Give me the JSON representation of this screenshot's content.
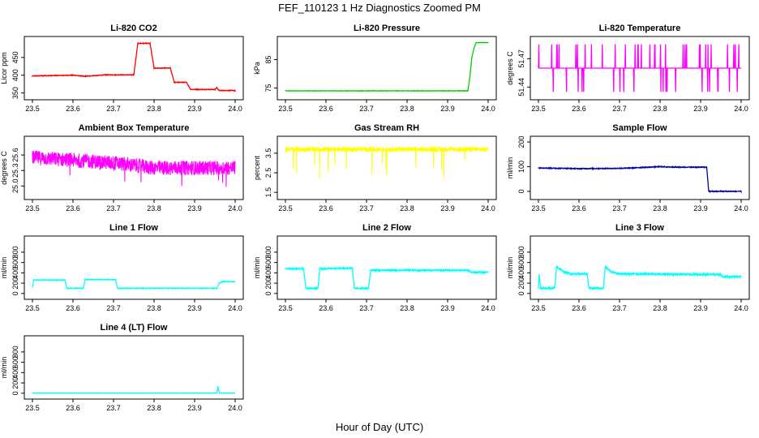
{
  "figure": {
    "title": "FEF_110123  1 Hz Diagnostics Zoomed PM",
    "xlabel": "Hour of Day (UTC)"
  },
  "chart_data": [
    {
      "type": "line",
      "title": "Li-820 CO2",
      "ylabel": "Licor ppm",
      "xlim": [
        23.5,
        24.0
      ],
      "ylim": [
        340,
        500
      ],
      "x_ticks": [
        "23.5",
        "23.6",
        "23.7",
        "23.8",
        "23.9",
        "24.0"
      ],
      "y_ticks": [
        {
          "v": 350,
          "label": "350"
        },
        {
          "v": 400,
          "label": "400"
        },
        {
          "v": 450,
          "label": "450"
        }
      ],
      "color": "#ff0000",
      "style": "step",
      "noise": 0.8,
      "series": [
        {
          "x": [
            23.5,
            23.6,
            23.63,
            23.68,
            23.75,
            23.76,
            23.79,
            23.8,
            23.84,
            23.85,
            23.88,
            23.89,
            23.95,
            23.955,
            23.96,
            24.0
          ],
          "y": [
            398,
            400,
            397,
            401,
            401,
            490,
            490,
            420,
            420,
            380,
            380,
            360,
            360,
            365,
            357,
            357
          ]
        }
      ]
    },
    {
      "type": "line",
      "title": "Li-820 Pressure",
      "ylabel": "kPa",
      "xlim": [
        23.5,
        24.0
      ],
      "ylim": [
        72,
        92
      ],
      "x_ticks": [
        "23.5",
        "23.6",
        "23.7",
        "23.8",
        "23.9",
        "24.0"
      ],
      "y_ticks": [
        {
          "v": 75,
          "label": "75"
        },
        {
          "v": 85,
          "label": "85"
        }
      ],
      "color": "#00cc00",
      "style": "line",
      "noise": 0.05,
      "series": [
        {
          "x": [
            23.5,
            23.93,
            23.95,
            23.955,
            23.96,
            23.965,
            23.97,
            24.0
          ],
          "y": [
            74,
            74,
            74,
            79,
            86,
            89,
            91,
            91
          ]
        }
      ]
    },
    {
      "type": "line",
      "title": "Li-820 Temperature",
      "ylabel": "degrees C",
      "xlim": [
        23.5,
        24.0
      ],
      "ylim": [
        51.43,
        51.49
      ],
      "x_ticks": [
        "23.5",
        "23.6",
        "23.7",
        "23.8",
        "23.9",
        "24.0"
      ],
      "y_ticks": [
        {
          "v": 51.44,
          "label": "51.44"
        },
        {
          "v": 51.47,
          "label": "51.47"
        }
      ],
      "color": "#ff00ff",
      "style": "flicker",
      "levels": [
        51.435,
        51.46,
        51.485
      ],
      "base": 51.46,
      "series": [
        {
          "x": [
            23.5,
            24.0
          ],
          "y": [
            51.46,
            51.46
          ]
        }
      ]
    },
    {
      "type": "line",
      "title": "Ambient Box Temperature",
      "ylabel": "degrees C",
      "xlim": [
        23.5,
        24.0
      ],
      "ylim": [
        24.8,
        25.9
      ],
      "x_ticks": [
        "23.5",
        "23.6",
        "23.7",
        "23.8",
        "23.9",
        "24.0"
      ],
      "y_ticks": [
        {
          "v": 25.0,
          "label": "25.0"
        },
        {
          "v": 25.3,
          "label": "25.3"
        },
        {
          "v": 25.6,
          "label": "25.6"
        }
      ],
      "color": "#ff00ff",
      "style": "band",
      "noise": 0.14,
      "spike_down": 0.35,
      "series": [
        {
          "x": [
            23.5,
            23.7,
            23.8,
            24.0
          ],
          "y": [
            25.55,
            25.45,
            25.35,
            25.35
          ]
        }
      ]
    },
    {
      "type": "line",
      "title": "Gas Stream RH",
      "ylabel": "percent",
      "xlim": [
        23.5,
        24.0
      ],
      "ylim": [
        1.3,
        4.2
      ],
      "x_ticks": [
        "23.5",
        "23.6",
        "23.7",
        "23.8",
        "23.9",
        "24.0"
      ],
      "y_ticks": [
        {
          "v": 1.5,
          "label": "1.5"
        },
        {
          "v": 2.5,
          "label": "2.5"
        },
        {
          "v": 3.5,
          "label": "3.5"
        }
      ],
      "color": "#ffff00",
      "style": "band",
      "noise": 0.13,
      "spike_down": 1.5,
      "series": [
        {
          "x": [
            23.5,
            24.0
          ],
          "y": [
            3.7,
            3.7
          ]
        }
      ]
    },
    {
      "type": "line",
      "title": "Sample Flow",
      "ylabel": "ml/min",
      "xlim": [
        23.5,
        24.0
      ],
      "ylim": [
        -20,
        210
      ],
      "x_ticks": [
        "23.5",
        "23.6",
        "23.7",
        "23.8",
        "23.9",
        "24.0"
      ],
      "y_ticks": [
        {
          "v": 0,
          "label": "0"
        },
        {
          "v": 100,
          "label": "100"
        },
        {
          "v": 200,
          "label": "200"
        }
      ],
      "color": "#0000aa",
      "style": "line",
      "noise": 1.5,
      "series": [
        {
          "x": [
            23.5,
            23.6,
            23.7,
            23.8,
            23.83,
            23.915,
            23.92,
            24.0
          ],
          "y": [
            95,
            92,
            93,
            100,
            98,
            98,
            0,
            0
          ]
        }
      ]
    },
    {
      "type": "line",
      "title": "Line 1 Flow",
      "ylabel": "ml/min",
      "xlim": [
        23.5,
        24.0
      ],
      "ylim": [
        -50,
        1050
      ],
      "x_ticks": [
        "23.5",
        "23.6",
        "23.7",
        "23.8",
        "23.9",
        "24.0"
      ],
      "y_ticks": [
        {
          "v": 0,
          "label": "0"
        },
        {
          "v": 200,
          "label": "200"
        },
        {
          "v": 400,
          "label": "400"
        },
        {
          "v": 600,
          "label": "600"
        },
        {
          "v": 800,
          "label": "800"
        }
      ],
      "color": "#00ffff",
      "style": "step",
      "noise": 6,
      "series": [
        {
          "x": [
            23.5,
            23.503,
            23.58,
            23.585,
            23.625,
            23.63,
            23.705,
            23.71,
            23.955,
            23.96,
            23.97,
            24.0
          ],
          "y": [
            120,
            260,
            260,
            100,
            100,
            270,
            270,
            100,
            100,
            200,
            230,
            230
          ]
        }
      ]
    },
    {
      "type": "line",
      "title": "Line 2 Flow",
      "ylabel": "ml/min",
      "xlim": [
        23.5,
        24.0
      ],
      "ylim": [
        -50,
        1050
      ],
      "x_ticks": [
        "23.5",
        "23.6",
        "23.7",
        "23.8",
        "23.9",
        "24.0"
      ],
      "y_ticks": [
        {
          "v": 0,
          "label": "0"
        },
        {
          "v": 200,
          "label": "200"
        },
        {
          "v": 400,
          "label": "400"
        },
        {
          "v": 600,
          "label": "600"
        },
        {
          "v": 800,
          "label": "800"
        }
      ],
      "color": "#00ffff",
      "style": "step",
      "noise": 12,
      "series": [
        {
          "x": [
            23.5,
            23.545,
            23.55,
            23.58,
            23.585,
            23.665,
            23.67,
            23.705,
            23.71,
            23.95,
            23.96,
            24.0
          ],
          "y": [
            480,
            480,
            100,
            100,
            480,
            490,
            100,
            100,
            450,
            450,
            410,
            410
          ]
        }
      ]
    },
    {
      "type": "line",
      "title": "Line 3 Flow",
      "ylabel": "ml/min",
      "xlim": [
        23.5,
        24.0
      ],
      "ylim": [
        -50,
        1050
      ],
      "x_ticks": [
        "23.5",
        "23.6",
        "23.7",
        "23.8",
        "23.9",
        "24.0"
      ],
      "y_ticks": [
        {
          "v": 0,
          "label": "0"
        },
        {
          "v": 200,
          "label": "200"
        },
        {
          "v": 400,
          "label": "400"
        },
        {
          "v": 600,
          "label": "600"
        },
        {
          "v": 800,
          "label": "800"
        }
      ],
      "color": "#00ffff",
      "style": "step",
      "noise": 18,
      "series": [
        {
          "x": [
            23.5,
            23.502,
            23.505,
            23.54,
            23.545,
            23.56,
            23.58,
            23.62,
            23.625,
            23.66,
            23.665,
            23.68,
            23.7,
            23.9,
            23.95,
            23.955,
            24.0
          ],
          "y": [
            100,
            380,
            100,
            100,
            520,
            430,
            380,
            380,
            100,
            100,
            520,
            420,
            380,
            370,
            370,
            320,
            330
          ]
        }
      ]
    },
    {
      "type": "line",
      "title": "Line 4 (LT) Flow",
      "ylabel": "ml/min",
      "xlim": [
        23.5,
        24.0
      ],
      "ylim": [
        -50,
        1050
      ],
      "x_ticks": [
        "23.5",
        "23.6",
        "23.7",
        "23.8",
        "23.9",
        "24.0"
      ],
      "y_ticks": [
        {
          "v": 0,
          "label": "0"
        },
        {
          "v": 200,
          "label": "200"
        },
        {
          "v": 400,
          "label": "400"
        },
        {
          "v": 600,
          "label": "600"
        },
        {
          "v": 800,
          "label": "800"
        }
      ],
      "color": "#00ffff",
      "style": "line",
      "noise": 2,
      "series": [
        {
          "x": [
            23.5,
            23.955,
            23.957,
            23.959,
            23.962,
            24.0
          ],
          "y": [
            5,
            5,
            140,
            60,
            5,
            5
          ]
        }
      ]
    }
  ]
}
